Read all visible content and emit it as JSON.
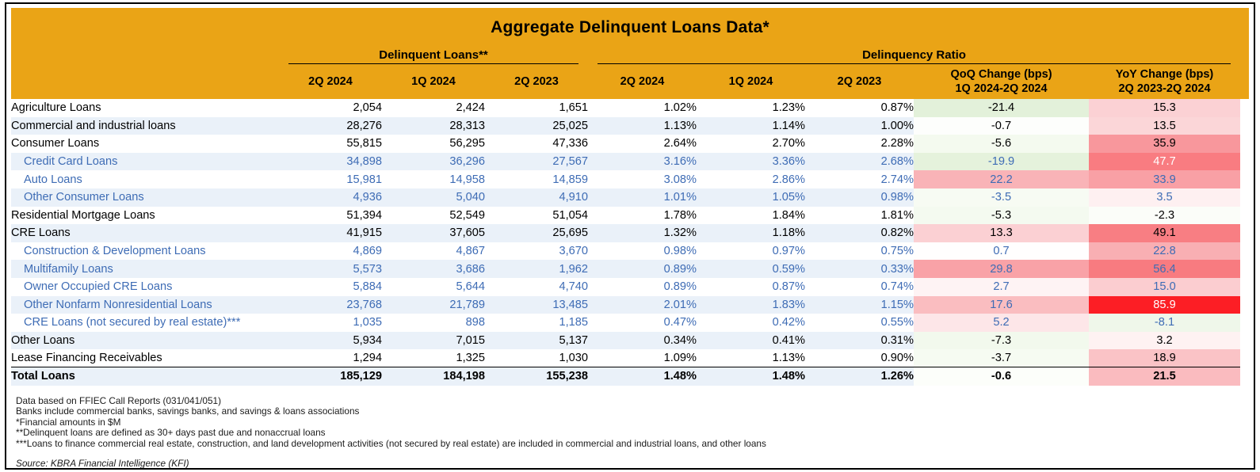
{
  "report": {
    "title": "Aggregate Delinquent Loans Data*",
    "source": "Source: KBRA Financial Intelligence (KFI)",
    "footnotes": [
      "Data based on FFIEC Call Reports (031/041/051)",
      "Banks include commercial banks, savings banks, and savings & loans associations",
      "*Financial amounts in $M",
      "**Delinquent loans are defined as 30+ days past due and nonaccrual loans",
      "***Loans to finance commercial real estate, construction, and land development activities (not secured by real estate) are included in commercial and industrial loans, and other loans"
    ]
  },
  "colors": {
    "header_bg": "#EAA416",
    "stripe_bg": "#EAF1F9",
    "subrow_text": "#3E6CB5",
    "border": "#000000",
    "negative_strong": "#E3F1DA",
    "positive_strong": "#FC1E25"
  },
  "table": {
    "groups": {
      "loans": "Delinquent Loans**",
      "ratio": "Delinquency Ratio"
    },
    "columns": {
      "loans": [
        "2Q 2024",
        "1Q 2024",
        "2Q 2023"
      ],
      "ratio": [
        "2Q 2024",
        "1Q 2024",
        "2Q 2023"
      ],
      "qoq": {
        "line1": "QoQ Change (bps)",
        "line2": "1Q 2024-2Q 2024"
      },
      "yoy": {
        "line1": "YoY Change (bps)",
        "line2": "2Q 2023-2Q 2024"
      }
    },
    "rows": [
      {
        "label": "Agriculture Loans",
        "style": "main",
        "loans": [
          "2,054",
          "2,424",
          "1,651"
        ],
        "ratio": [
          "1.02%",
          "1.23%",
          "0.87%"
        ],
        "qoq": {
          "value": "-21.4",
          "bg": "#E3F1DA"
        },
        "yoy": {
          "value": "15.3",
          "bg": "#FBD1D4"
        }
      },
      {
        "label": "Commercial and industrial loans",
        "style": "main",
        "loans": [
          "28,276",
          "28,313",
          "25,025"
        ],
        "ratio": [
          "1.13%",
          "1.14%",
          "1.00%"
        ],
        "qoq": {
          "value": "-0.7",
          "bg": "#FDFEFC"
        },
        "yoy": {
          "value": "13.5",
          "bg": "#FBD6D8"
        }
      },
      {
        "label": "Consumer Loans",
        "style": "main",
        "loans": [
          "55,815",
          "56,295",
          "47,336"
        ],
        "ratio": [
          "2.64%",
          "2.70%",
          "2.28%"
        ],
        "qoq": {
          "value": "-5.6",
          "bg": "#F4FAEF"
        },
        "yoy": {
          "value": "35.9",
          "bg": "#F8979C"
        }
      },
      {
        "label": "Credit Card Loans",
        "style": "sub",
        "loans": [
          "34,898",
          "36,296",
          "27,567"
        ],
        "ratio": [
          "3.16%",
          "3.36%",
          "2.68%"
        ],
        "qoq": {
          "value": "-19.9",
          "bg": "#E5F2DC"
        },
        "yoy": {
          "value": "47.7",
          "bg": "#F97C81",
          "fg": "#FFFFFF"
        }
      },
      {
        "label": "Auto Loans",
        "style": "sub",
        "loans": [
          "15,981",
          "14,958",
          "14,859"
        ],
        "ratio": [
          "3.08%",
          "2.86%",
          "2.74%"
        ],
        "qoq": {
          "value": "22.2",
          "bg": "#F9B3B7"
        },
        "yoy": {
          "value": "33.9",
          "bg": "#F9A0A5"
        }
      },
      {
        "label": "Other Consumer Loans",
        "style": "sub",
        "loans": [
          "4,936",
          "5,040",
          "4,910"
        ],
        "ratio": [
          "1.01%",
          "1.05%",
          "0.98%"
        ],
        "qoq": {
          "value": "-3.5",
          "bg": "#F7FBF3"
        },
        "yoy": {
          "value": "3.5",
          "bg": "#FEF0F1"
        }
      },
      {
        "label": "Residential Mortgage Loans",
        "style": "main",
        "loans": [
          "51,394",
          "52,549",
          "51,054"
        ],
        "ratio": [
          "1.78%",
          "1.84%",
          "1.81%"
        ],
        "qoq": {
          "value": "-5.3",
          "bg": "#F4FAF0"
        },
        "yoy": {
          "value": "-2.3",
          "bg": "#FBFDF9"
        }
      },
      {
        "label": "CRE Loans",
        "style": "main",
        "loans": [
          "41,915",
          "37,605",
          "25,695"
        ],
        "ratio": [
          "1.32%",
          "1.18%",
          "0.82%"
        ],
        "qoq": {
          "value": "13.3",
          "bg": "#FBD0D3"
        },
        "yoy": {
          "value": "49.1",
          "bg": "#F87E83"
        }
      },
      {
        "label": "Construction & Development Loans",
        "style": "sub",
        "loans": [
          "4,869",
          "4,867",
          "3,670"
        ],
        "ratio": [
          "0.98%",
          "0.97%",
          "0.75%"
        ],
        "qoq": {
          "value": "0.7",
          "bg": "#FFFEFE"
        },
        "yoy": {
          "value": "22.8",
          "bg": "#F9AFB3"
        }
      },
      {
        "label": "Multifamily Loans",
        "style": "sub",
        "loans": [
          "5,573",
          "3,686",
          "1,962"
        ],
        "ratio": [
          "0.89%",
          "0.59%",
          "0.33%"
        ],
        "qoq": {
          "value": "29.8",
          "bg": "#F9A2A7"
        },
        "yoy": {
          "value": "56.4",
          "bg": "#F87B80"
        }
      },
      {
        "label": "Owner Occupied CRE Loans",
        "style": "sub",
        "loans": [
          "5,884",
          "5,644",
          "4,740"
        ],
        "ratio": [
          "0.89%",
          "0.87%",
          "0.74%"
        ],
        "qoq": {
          "value": "2.7",
          "bg": "#FEF3F4"
        },
        "yoy": {
          "value": "15.0",
          "bg": "#FBCDD0"
        }
      },
      {
        "label": "Other Nonfarm Nonresidential Loans",
        "style": "sub",
        "loans": [
          "23,768",
          "21,789",
          "13,485"
        ],
        "ratio": [
          "2.01%",
          "1.83%",
          "1.15%"
        ],
        "qoq": {
          "value": "17.6",
          "bg": "#FABDC0"
        },
        "yoy": {
          "value": "85.9",
          "bg": "#FC1E25",
          "fg": "#FFFFFF"
        }
      },
      {
        "label": "CRE Loans (not secured by real estate)***",
        "style": "sub",
        "loans": [
          "1,035",
          "898",
          "1,185"
        ],
        "ratio": [
          "0.47%",
          "0.42%",
          "0.55%"
        ],
        "qoq": {
          "value": "5.2",
          "bg": "#FDE6E8"
        },
        "yoy": {
          "value": "-8.1",
          "bg": "#EFF7EA"
        }
      },
      {
        "label": "Other Loans",
        "style": "main",
        "loans": [
          "5,934",
          "7,015",
          "5,137"
        ],
        "ratio": [
          "0.34%",
          "0.41%",
          "0.31%"
        ],
        "qoq": {
          "value": "-7.3",
          "bg": "#F2F9ED"
        },
        "yoy": {
          "value": "3.2",
          "bg": "#FEF2F2"
        }
      },
      {
        "label": "Lease Financing Receivables",
        "style": "main",
        "loans": [
          "1,294",
          "1,325",
          "1,030"
        ],
        "ratio": [
          "1.09%",
          "1.13%",
          "0.90%"
        ],
        "qoq": {
          "value": "-3.7",
          "bg": "#F6FBF2"
        },
        "yoy": {
          "value": "18.9",
          "bg": "#FAC3C6"
        }
      },
      {
        "label": "Total Loans",
        "style": "total",
        "loans": [
          "185,129",
          "184,198",
          "155,238"
        ],
        "ratio": [
          "1.48%",
          "1.48%",
          "1.26%"
        ],
        "qoq": {
          "value": "-0.6",
          "bg": "#FCFEFA"
        },
        "yoy": {
          "value": "21.5",
          "bg": "#FABBBF"
        }
      }
    ]
  }
}
